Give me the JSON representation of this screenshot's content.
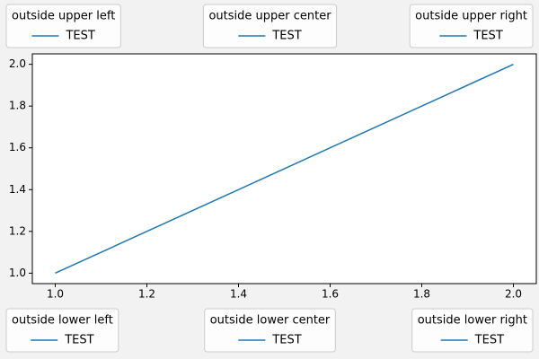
{
  "chart_data": {
    "type": "line",
    "x": [
      1,
      2
    ],
    "series": [
      {
        "name": "TEST",
        "color": "#1f77b4",
        "values": [
          1,
          2
        ]
      }
    ],
    "xlim": [
      0.95,
      2.05
    ],
    "ylim": [
      0.95,
      2.05
    ],
    "xticks": [
      {
        "value": 1,
        "label": "1.0"
      },
      1.2,
      1.4,
      1.6,
      1.8,
      {
        "value": 2,
        "label": "2.0"
      }
    ],
    "yticks": [
      {
        "value": 1,
        "label": "1.0"
      },
      1.2,
      1.4,
      1.6,
      1.8,
      {
        "value": 2,
        "label": "2.0"
      }
    ],
    "legends": [
      {
        "title": "outside upper left",
        "loc": "upper left"
      },
      {
        "title": "outside upper center",
        "loc": "upper center"
      },
      {
        "title": "outside upper right",
        "loc": "upper right"
      },
      {
        "title": "outside lower left",
        "loc": "lower left"
      },
      {
        "title": "outside lower center",
        "loc": "lower center"
      },
      {
        "title": "outside lower right",
        "loc": "lower right"
      }
    ]
  }
}
